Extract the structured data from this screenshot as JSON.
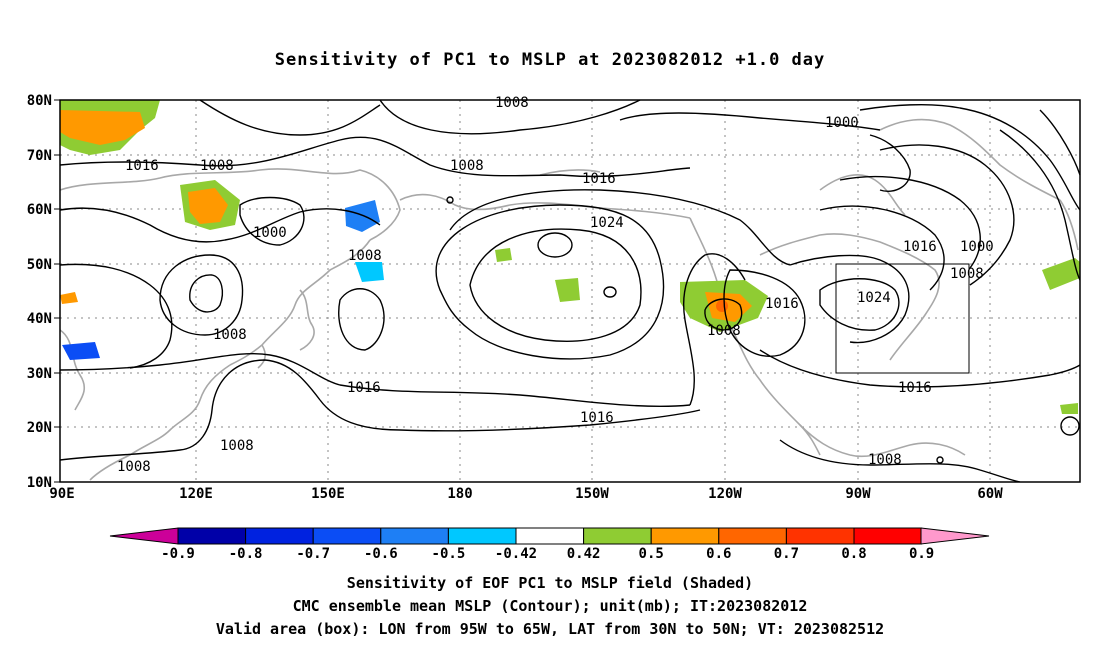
{
  "title": "Sensitivity of PC1 to MSLP at 2023082012 +1.0 day",
  "lat_labels": [
    "80N",
    "70N",
    "60N",
    "50N",
    "40N",
    "30N",
    "20N",
    "10N"
  ],
  "lon_labels": [
    "90E",
    "120E",
    "150E",
    "180",
    "150W",
    "120W",
    "90W",
    "60W"
  ],
  "contour_labels": [
    {
      "text": "1008",
      "pos": "top-center"
    },
    {
      "text": "1000",
      "pos": "upper-right"
    },
    {
      "text": "1016",
      "pos": "upper-left"
    },
    {
      "text": "1008",
      "pos": "upper-left"
    },
    {
      "text": "1008",
      "pos": "north-pacific"
    },
    {
      "text": "1016",
      "pos": "north-pacific-east"
    },
    {
      "text": "1024",
      "pos": "pacific-high"
    },
    {
      "text": "1000",
      "pos": "asia"
    },
    {
      "text": "1008",
      "pos": "japan"
    },
    {
      "text": "1016",
      "pos": "east-america"
    },
    {
      "text": "1000",
      "pos": "east-america"
    },
    {
      "text": "1008",
      "pos": "east-america"
    },
    {
      "text": "1024",
      "pos": "atlantic-box"
    },
    {
      "text": "1016",
      "pos": "west-coast"
    },
    {
      "text": "1008",
      "pos": "west-coast"
    },
    {
      "text": "1008",
      "pos": "asia-central"
    },
    {
      "text": "1016",
      "pos": "west-pacific"
    },
    {
      "text": "1016",
      "pos": "subtropics"
    },
    {
      "text": "1016",
      "pos": "atlantic-south"
    },
    {
      "text": "1008",
      "pos": "south-china"
    },
    {
      "text": "1008",
      "pos": "indochina"
    },
    {
      "text": "1008",
      "pos": "caribbean"
    }
  ],
  "colorbar": {
    "labels": [
      "-0.9",
      "-0.8",
      "-0.7",
      "-0.6",
      "-0.5",
      "-0.42",
      "0.42",
      "0.5",
      "0.6",
      "0.7",
      "0.8",
      "0.9"
    ],
    "colors": [
      "#0000a8",
      "#0022e0",
      "#0b4df5",
      "#1e7ff5",
      "#00c8ff",
      "#ffffff",
      "#8fcc33",
      "#ff9900",
      "#ff6600",
      "#ff3300",
      "#ff0000"
    ],
    "low_color": "#cc0099",
    "high_color": "#ff99cc"
  },
  "captions": [
    "Sensitivity of EOF PC1 to MSLP field (Shaded)",
    "CMC ensemble mean MSLP (Contour); unit(mb); IT:2023082012",
    "Valid area (box): LON from 95W to 65W, LAT from 30N to 50N; VT: 2023082512"
  ],
  "valid_box": {
    "lon_min": "95W",
    "lon_max": "65W",
    "lat_min": "30N",
    "lat_max": "50N"
  }
}
